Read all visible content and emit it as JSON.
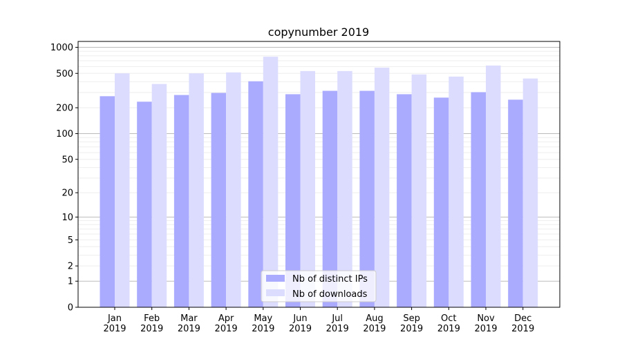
{
  "chart_data": {
    "type": "bar",
    "title": "copynumber 2019",
    "xlabel": "",
    "ylabel": "",
    "yscale": "log(y+1)",
    "ylim": [
      0,
      1170
    ],
    "yticks": [
      0,
      1,
      2,
      5,
      10,
      20,
      50,
      100,
      200,
      500,
      1000
    ],
    "grid": true,
    "legend_position": "lower center",
    "categories": [
      "Jan\n2019",
      "Feb\n2019",
      "Mar\n2019",
      "Apr\n2019",
      "May\n2019",
      "Jun\n2019",
      "Jul\n2019",
      "Aug\n2019",
      "Sep\n2019",
      "Oct\n2019",
      "Nov\n2019",
      "Dec\n2019"
    ],
    "series": [
      {
        "name": "Nb of distinct IPs",
        "color": "#aaaaff",
        "values": [
          272,
          235,
          281,
          297,
          405,
          287,
          314,
          314,
          287,
          262,
          303,
          248
        ]
      },
      {
        "name": "Nb of downloads",
        "color": "#dcdcff",
        "values": [
          500,
          377,
          500,
          513,
          779,
          532,
          532,
          583,
          486,
          459,
          616,
          436
        ]
      }
    ]
  }
}
